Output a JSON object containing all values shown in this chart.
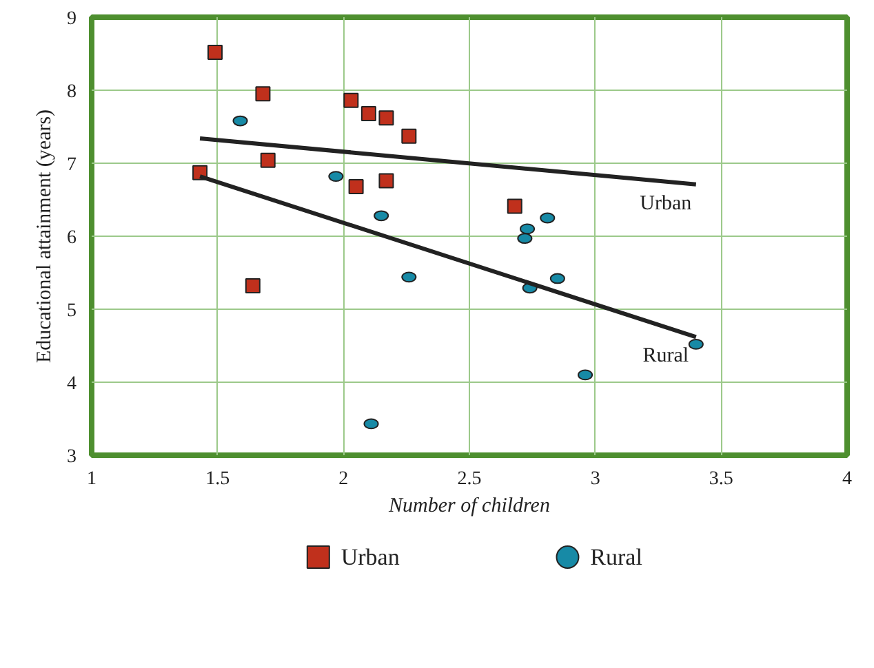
{
  "chart_data": {
    "type": "scatter",
    "xlabel": "Number of children",
    "ylabel": "Educational attainment (years)",
    "xlim": [
      1,
      4
    ],
    "ylim": [
      3,
      9
    ],
    "xticks": [
      1,
      1.5,
      2,
      2.5,
      3,
      3.5,
      4
    ],
    "yticks": [
      3,
      4,
      5,
      6,
      7,
      8,
      9
    ],
    "grid": true,
    "legend": "bottom",
    "series": [
      {
        "name": "Urban",
        "type": "scatter",
        "marker": "square",
        "color": "#c0301c",
        "x": [
          1.49,
          1.68,
          2.03,
          2.1,
          2.17,
          2.26,
          1.7,
          1.43,
          2.05,
          2.17,
          2.68,
          1.64
        ],
        "values": [
          8.52,
          7.95,
          7.86,
          7.68,
          7.62,
          7.37,
          7.04,
          6.87,
          6.68,
          6.76,
          6.41,
          5.32
        ]
      },
      {
        "name": "Rural",
        "type": "scatter",
        "marker": "circle",
        "color": "#178aa6",
        "x": [
          1.59,
          1.97,
          2.15,
          2.73,
          2.81,
          2.72,
          2.26,
          2.74,
          2.85,
          3.4,
          2.96,
          2.11
        ],
        "values": [
          7.58,
          6.82,
          6.28,
          6.1,
          6.25,
          5.97,
          5.44,
          5.29,
          5.42,
          4.52,
          4.1,
          3.43
        ]
      },
      {
        "type": "line",
        "color": "#222222",
        "x": [
          1.43,
          3.4
        ],
        "values": [
          7.34,
          6.71
        ]
      },
      {
        "type": "line",
        "color": "#222222",
        "x": [
          1.43,
          3.4
        ],
        "values": [
          6.82,
          4.62
        ]
      }
    ],
    "annotations": [
      "Urban",
      "Rural"
    ]
  }
}
